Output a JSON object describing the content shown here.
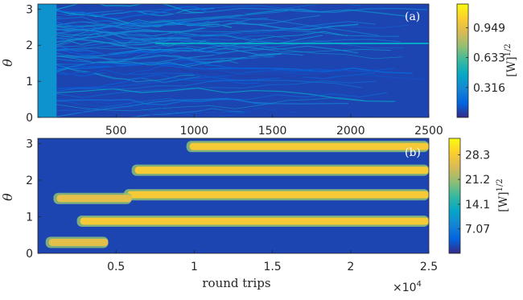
{
  "chart_data": [
    {
      "type": "heatmap",
      "panel_label": "(a)",
      "ylabel": "θ",
      "xlabel": "",
      "xlim": [
        0,
        2500
      ],
      "ylim": [
        0,
        3.1416
      ],
      "xticks": [
        500,
        1000,
        1500,
        2000,
        2500
      ],
      "xtick_labels": [
        "500",
        "1000",
        "1500",
        "2000",
        "2500"
      ],
      "yticks": [
        0,
        1,
        2,
        3
      ],
      "ytick_labels": [
        "0",
        "1",
        "2",
        "3"
      ],
      "colorbar": {
        "ticks": [
          0.316,
          0.633,
          0.949
        ],
        "tick_labels": [
          "0.316",
          "0.633",
          "0.949"
        ],
        "range": [
          0,
          1.2
        ],
        "label": "[W]",
        "label_exponent": "1/2"
      },
      "features": [
        {
          "kind": "uniform_region",
          "x_range": [
            0,
            120
          ],
          "intensity": 0.36
        },
        {
          "kind": "noisy_filaments",
          "x_range": [
            120,
            2500
          ],
          "intensity_range": [
            0.05,
            0.45
          ]
        },
        {
          "kind": "stable_line",
          "theta": 2.05,
          "x_start": 750,
          "intensity": 0.45
        }
      ],
      "colormap": "parula"
    },
    {
      "type": "heatmap",
      "panel_label": "(b)",
      "ylabel": "θ",
      "xlabel": "round trips",
      "x_multiplier": "×10",
      "x_multiplier_exponent": "4",
      "xlim": [
        0,
        2.5
      ],
      "ylim": [
        0,
        3.1416
      ],
      "xticks": [
        0.5,
        1,
        1.5,
        2,
        2.5
      ],
      "xtick_labels": [
        "0.5",
        "1",
        "1.5",
        "2",
        "2.5"
      ],
      "yticks": [
        0,
        1,
        2,
        3
      ],
      "ytick_labels": [
        "0",
        "1",
        "2",
        "3"
      ],
      "colorbar": {
        "ticks": [
          7.07,
          14.1,
          21.2,
          28.3
        ],
        "tick_labels": [
          "7.07",
          "14.1",
          "21.2",
          "28.3"
        ],
        "range": [
          0,
          33
        ],
        "label": "[W]",
        "label_exponent": "1/2"
      },
      "features": [
        {
          "kind": "band",
          "theta": 2.92,
          "x_range": [
            0.95,
            2.5
          ],
          "intensity": 28
        },
        {
          "kind": "band",
          "theta": 2.27,
          "x_range": [
            0.6,
            2.5
          ],
          "intensity": 28
        },
        {
          "kind": "band",
          "theta": 1.6,
          "x_range": [
            0.55,
            2.5
          ],
          "intensity": 28
        },
        {
          "kind": "band",
          "theta": 0.88,
          "x_range": [
            0.25,
            2.5
          ],
          "intensity": 28
        },
        {
          "kind": "transient_band",
          "theta": 0.3,
          "x_range": [
            0.05,
            0.45
          ],
          "intensity": 26
        },
        {
          "kind": "transient_band",
          "theta": 1.5,
          "x_range": [
            0.1,
            0.6
          ],
          "intensity": 26
        }
      ],
      "colormap": "parula"
    }
  ]
}
